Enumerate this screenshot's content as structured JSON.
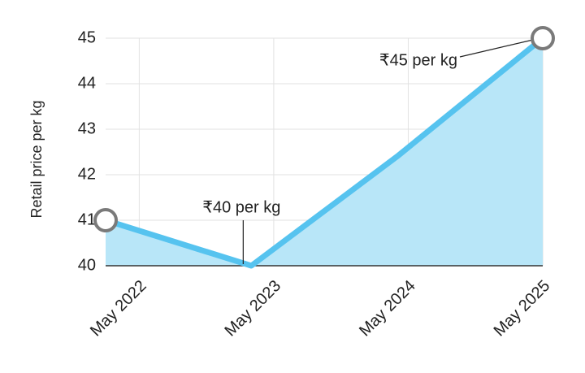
{
  "chart_data": {
    "type": "area",
    "y_label": "Retail price per kg",
    "x": [
      "2022-02",
      "2023-03",
      "2024-04",
      "2025-05"
    ],
    "series": [
      {
        "name": "Retail price",
        "color": "#56c3ef",
        "fill": "#b8e6f8",
        "values": [
          41,
          40,
          42.4,
          45
        ]
      }
    ],
    "xlim": [
      "2022-02",
      "2025-05"
    ],
    "xticks": [
      {
        "value": "2022-05",
        "label": "May 2022"
      },
      {
        "value": "2023-05",
        "label": "May 2023"
      },
      {
        "value": "2024-05",
        "label": "May 2024"
      },
      {
        "value": "2025-05",
        "label": "May 2025"
      }
    ],
    "ylim": [
      40,
      45
    ],
    "yticks": [
      40,
      41,
      42,
      43,
      44,
      45
    ],
    "grid": true,
    "annotations": [
      "₹40 per kg",
      "₹45 per kg"
    ]
  }
}
